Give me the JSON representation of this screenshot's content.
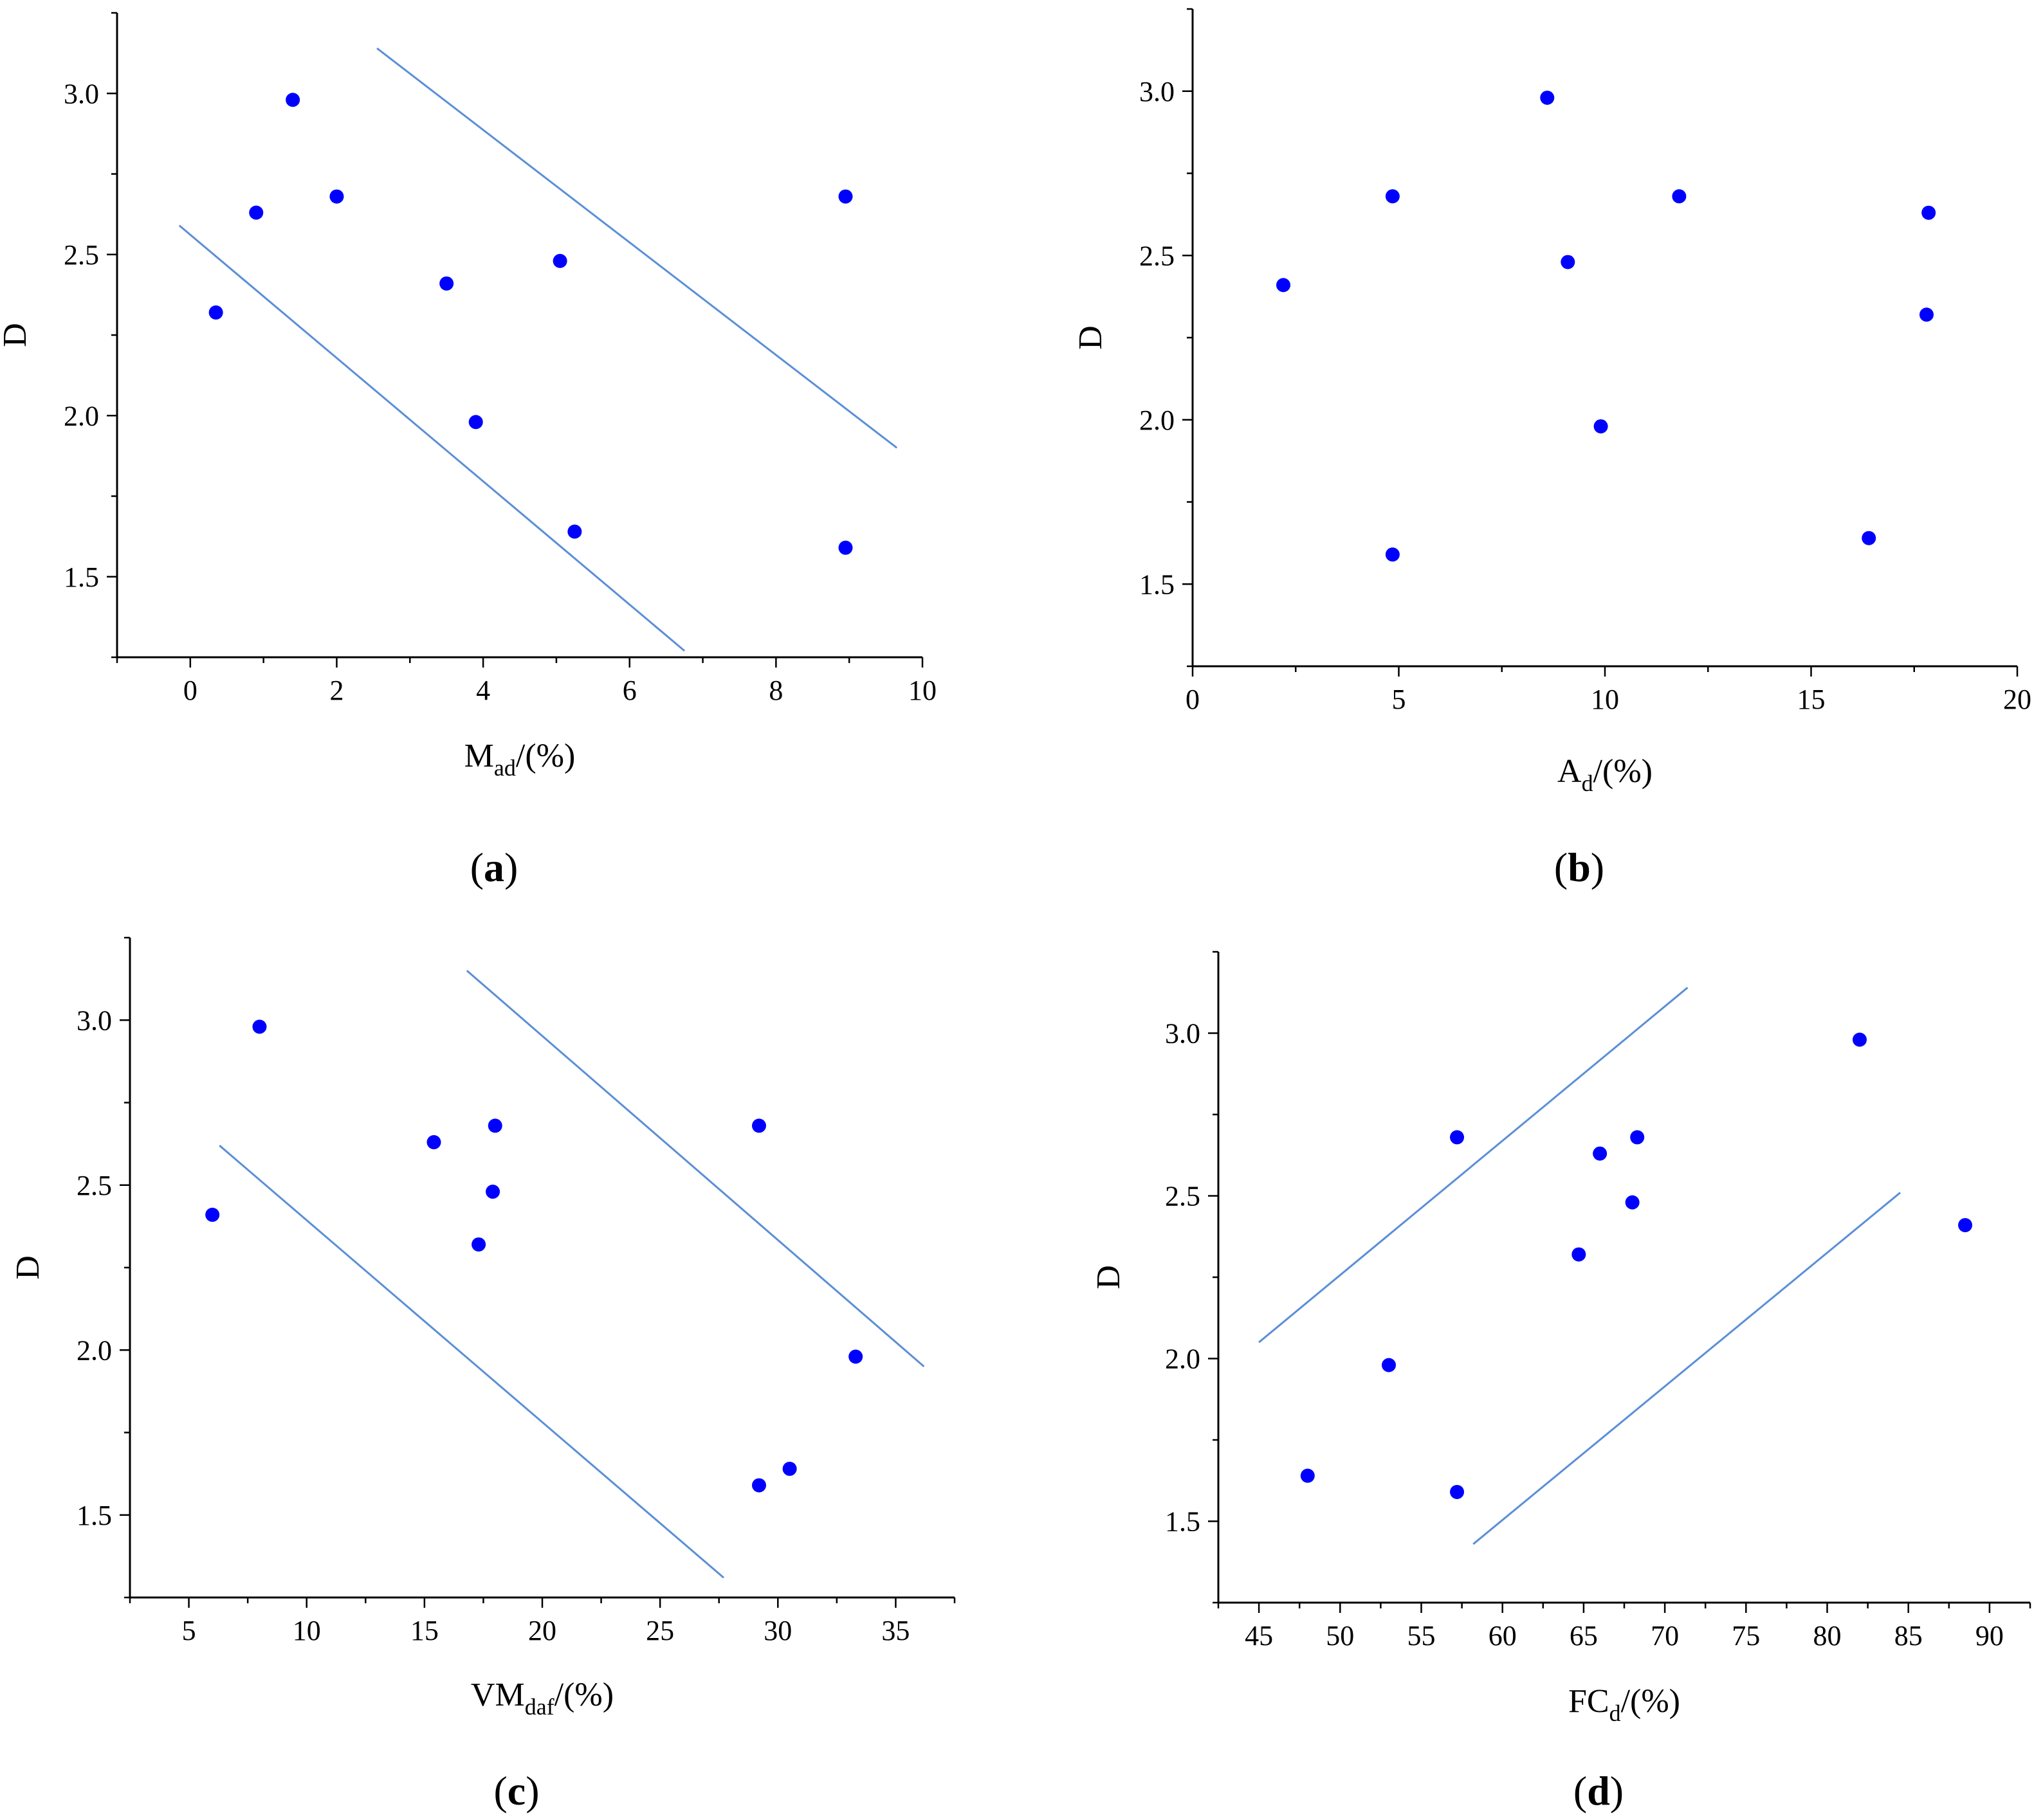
{
  "chart_data": [
    {
      "type": "scatter",
      "panel": "a",
      "caption_letter": "a",
      "xlabel": {
        "main": "M",
        "sub": "ad",
        "suffix": "/(%)"
      },
      "ylabel": "D",
      "xlim": [
        -1,
        10
      ],
      "ylim": [
        1.25,
        3.25
      ],
      "xticks": [
        0,
        2,
        4,
        6,
        8,
        10
      ],
      "yticks": [
        1.5,
        2.0,
        2.5,
        3.0
      ],
      "xtick_labels": [
        "0",
        "2",
        "4",
        "6",
        "8",
        "10"
      ],
      "ytick_labels": [
        "1.5",
        "2.0",
        "2.5",
        "3.0"
      ],
      "points": [
        {
          "x": 0.35,
          "y": 2.32
        },
        {
          "x": 0.9,
          "y": 2.63
        },
        {
          "x": 1.4,
          "y": 2.98
        },
        {
          "x": 2.0,
          "y": 2.68
        },
        {
          "x": 3.5,
          "y": 2.41
        },
        {
          "x": 3.9,
          "y": 1.98
        },
        {
          "x": 5.05,
          "y": 2.48
        },
        {
          "x": 5.25,
          "y": 1.64
        },
        {
          "x": 8.95,
          "y": 2.68
        },
        {
          "x": 8.95,
          "y": 1.59
        }
      ],
      "lines": [
        {
          "x1": -0.15,
          "y1": 2.59,
          "x2": 6.75,
          "y2": 1.27
        },
        {
          "x1": 2.55,
          "y1": 3.14,
          "x2": 9.65,
          "y2": 1.9
        }
      ],
      "point_color": "#0000ff",
      "line_color": "#5b8fd6"
    },
    {
      "type": "scatter",
      "panel": "b",
      "caption_letter": "b",
      "xlabel": {
        "main": "A",
        "sub": "d",
        "suffix": "/(%)"
      },
      "ylabel": "D",
      "xlim": [
        0,
        20
      ],
      "ylim": [
        1.25,
        3.25
      ],
      "xticks": [
        0,
        5,
        10,
        15,
        20
      ],
      "yticks": [
        1.5,
        2.0,
        2.5,
        3.0
      ],
      "xtick_labels": [
        "0",
        "5",
        "10",
        "15",
        "20"
      ],
      "ytick_labels": [
        "1.5",
        "2.0",
        "2.5",
        "3.0"
      ],
      "points": [
        {
          "x": 2.2,
          "y": 2.41
        },
        {
          "x": 4.85,
          "y": 2.68
        },
        {
          "x": 4.85,
          "y": 1.59
        },
        {
          "x": 8.6,
          "y": 2.98
        },
        {
          "x": 9.1,
          "y": 2.48
        },
        {
          "x": 9.9,
          "y": 1.98
        },
        {
          "x": 11.8,
          "y": 2.68
        },
        {
          "x": 16.4,
          "y": 1.64
        },
        {
          "x": 17.8,
          "y": 2.32
        },
        {
          "x": 17.85,
          "y": 2.63
        }
      ],
      "lines": [],
      "point_color": "#0000ff",
      "line_color": "#5b8fd6"
    },
    {
      "type": "scatter",
      "panel": "c",
      "caption_letter": "c",
      "xlabel": {
        "main": "VM",
        "sub": "daf",
        "suffix": "/(%)"
      },
      "ylabel": "D",
      "xlim": [
        2.5,
        37.5
      ],
      "ylim": [
        1.25,
        3.25
      ],
      "xticks": [
        5,
        10,
        15,
        20,
        25,
        30,
        35
      ],
      "yticks": [
        1.5,
        2.0,
        2.5,
        3.0
      ],
      "xtick_labels": [
        "5",
        "10",
        "15",
        "20",
        "25",
        "30",
        "35"
      ],
      "ytick_labels": [
        "1.5",
        "2.0",
        "2.5",
        "3.0"
      ],
      "points": [
        {
          "x": 6.0,
          "y": 2.41
        },
        {
          "x": 8.0,
          "y": 2.98
        },
        {
          "x": 15.4,
          "y": 2.63
        },
        {
          "x": 17.3,
          "y": 2.32
        },
        {
          "x": 17.9,
          "y": 2.48
        },
        {
          "x": 18.0,
          "y": 2.68
        },
        {
          "x": 29.2,
          "y": 2.68
        },
        {
          "x": 29.2,
          "y": 1.59
        },
        {
          "x": 30.5,
          "y": 1.64
        },
        {
          "x": 33.3,
          "y": 1.98
        }
      ],
      "lines": [
        {
          "x1": 6.3,
          "y1": 2.62,
          "x2": 27.7,
          "y2": 1.31
        },
        {
          "x1": 16.8,
          "y1": 3.15,
          "x2": 36.2,
          "y2": 1.95
        }
      ],
      "point_color": "#0000ff",
      "line_color": "#5b8fd6"
    },
    {
      "type": "scatter",
      "panel": "d",
      "caption_letter": "d",
      "xlabel": {
        "main": "FC",
        "sub": "d",
        "suffix": "/(%)"
      },
      "ylabel": "D",
      "xlim": [
        42.5,
        92.5
      ],
      "ylim": [
        1.25,
        3.25
      ],
      "xticks": [
        45,
        50,
        55,
        60,
        65,
        70,
        75,
        80,
        85,
        90
      ],
      "yticks": [
        1.5,
        2.0,
        2.5,
        3.0
      ],
      "xtick_labels": [
        "45",
        "50",
        "55",
        "60",
        "65",
        "70",
        "75",
        "80",
        "85",
        "90"
      ],
      "ytick_labels": [
        "1.5",
        "2.0",
        "2.5",
        "3.0"
      ],
      "points": [
        {
          "x": 48.0,
          "y": 1.64
        },
        {
          "x": 53.0,
          "y": 1.98
        },
        {
          "x": 57.2,
          "y": 2.68
        },
        {
          "x": 57.2,
          "y": 1.59
        },
        {
          "x": 64.7,
          "y": 2.32
        },
        {
          "x": 66.0,
          "y": 2.63
        },
        {
          "x": 68.0,
          "y": 2.48
        },
        {
          "x": 68.3,
          "y": 2.68
        },
        {
          "x": 82.0,
          "y": 2.98
        },
        {
          "x": 88.5,
          "y": 2.41
        }
      ],
      "lines": [
        {
          "x1": 45.0,
          "y1": 2.05,
          "x2": 71.4,
          "y2": 3.14
        },
        {
          "x1": 58.2,
          "y1": 1.43,
          "x2": 84.5,
          "y2": 2.51
        }
      ],
      "point_color": "#0000ff",
      "line_color": "#5b8fd6"
    }
  ]
}
